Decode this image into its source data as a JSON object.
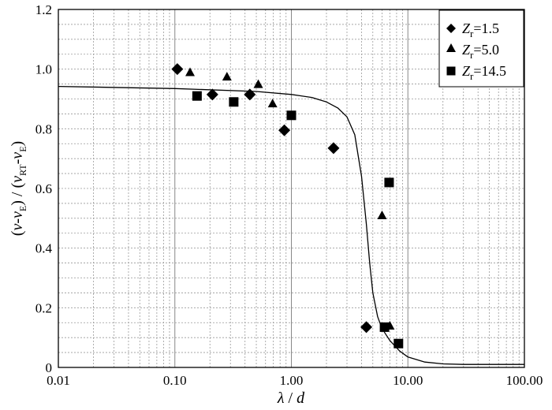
{
  "chart_data": {
    "type": "scatter",
    "x_scale": "log",
    "xlim": [
      0.01,
      100
    ],
    "ylim": [
      0,
      1.2
    ],
    "x_ticks": [
      {
        "value": 0.01,
        "label": "0.01"
      },
      {
        "value": 0.1,
        "label": "0.10"
      },
      {
        "value": 1,
        "label": "1.00"
      },
      {
        "value": 10,
        "label": "10.00"
      },
      {
        "value": 100,
        "label": "100.00"
      }
    ],
    "y_ticks": [
      {
        "value": 0,
        "label": "0"
      },
      {
        "value": 0.2,
        "label": "0.2"
      },
      {
        "value": 0.4,
        "label": "0.4"
      },
      {
        "value": 0.6,
        "label": "0.6"
      },
      {
        "value": 0.8,
        "label": "0.8"
      },
      {
        "value": 1.0,
        "label": "1.0"
      },
      {
        "value": 1.2,
        "label": "1.2"
      }
    ],
    "grid": true,
    "legend_position": "top-right",
    "series": [
      {
        "name": "Zr=1.5",
        "legend": {
          "symbol": "Z",
          "subscript": "r",
          "suffix": "=1.5"
        },
        "marker": "diamond",
        "points": [
          {
            "x": 0.105,
            "y": 1.0
          },
          {
            "x": 0.21,
            "y": 0.915
          },
          {
            "x": 0.44,
            "y": 0.915
          },
          {
            "x": 0.87,
            "y": 0.795
          },
          {
            "x": 2.3,
            "y": 0.735
          },
          {
            "x": 4.4,
            "y": 0.135
          }
        ]
      },
      {
        "name": "Zr=5.0",
        "legend": {
          "symbol": "Z",
          "subscript": "r",
          "suffix": "=5.0"
        },
        "marker": "triangle",
        "points": [
          {
            "x": 0.135,
            "y": 0.99
          },
          {
            "x": 0.28,
            "y": 0.975
          },
          {
            "x": 0.52,
            "y": 0.95
          },
          {
            "x": 0.69,
            "y": 0.885
          },
          {
            "x": 6.0,
            "y": 0.51
          },
          {
            "x": 7.0,
            "y": 0.14
          }
        ]
      },
      {
        "name": "Zr=14.5",
        "legend": {
          "symbol": "Z",
          "subscript": "r",
          "suffix": "=14.5"
        },
        "marker": "square",
        "points": [
          {
            "x": 0.155,
            "y": 0.91
          },
          {
            "x": 0.32,
            "y": 0.89
          },
          {
            "x": 1.0,
            "y": 0.845
          },
          {
            "x": 6.3,
            "y": 0.135
          },
          {
            "x": 6.9,
            "y": 0.62
          },
          {
            "x": 8.3,
            "y": 0.08
          }
        ]
      }
    ],
    "curve": {
      "points": [
        {
          "x": 0.01,
          "y": 0.942
        },
        {
          "x": 0.1,
          "y": 0.935
        },
        {
          "x": 0.5,
          "y": 0.925
        },
        {
          "x": 1.0,
          "y": 0.915
        },
        {
          "x": 1.5,
          "y": 0.905
        },
        {
          "x": 2.0,
          "y": 0.89
        },
        {
          "x": 2.5,
          "y": 0.87
        },
        {
          "x": 3.0,
          "y": 0.84
        },
        {
          "x": 3.5,
          "y": 0.78
        },
        {
          "x": 4.0,
          "y": 0.64
        },
        {
          "x": 4.4,
          "y": 0.48
        },
        {
          "x": 4.7,
          "y": 0.35
        },
        {
          "x": 5.0,
          "y": 0.25
        },
        {
          "x": 5.5,
          "y": 0.17
        },
        {
          "x": 6.0,
          "y": 0.13
        },
        {
          "x": 7.0,
          "y": 0.09
        },
        {
          "x": 8.5,
          "y": 0.055
        },
        {
          "x": 10.0,
          "y": 0.035
        },
        {
          "x": 14.0,
          "y": 0.018
        },
        {
          "x": 20.0,
          "y": 0.012
        },
        {
          "x": 30.0,
          "y": 0.01
        },
        {
          "x": 100.0,
          "y": 0.01
        }
      ]
    },
    "xlabel": {
      "a": "λ",
      "sep": " / ",
      "b": "d"
    },
    "ylabel": {
      "p1": "(",
      "v1": "ν",
      "m1": "-",
      "v2": "ν",
      "s2": "E",
      "p2": ") / (",
      "v3": "ν",
      "s3": "RT",
      "m2": "-",
      "v4": "ν",
      "s4": "E",
      "p3": ")"
    }
  }
}
